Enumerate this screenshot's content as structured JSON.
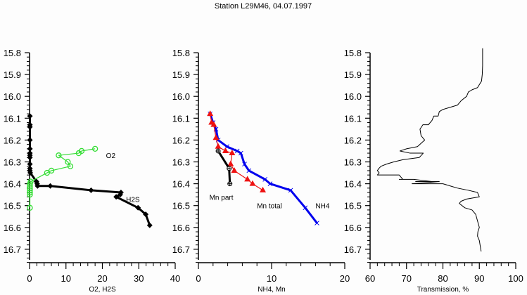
{
  "chart_data": {
    "type": "line",
    "title": "Station L29M46, 04.07.1997",
    "shared_y": {
      "label": "",
      "ylim": [
        15.8,
        16.76
      ],
      "inverted": true,
      "ticks": [
        15.8,
        15.9,
        16.0,
        16.1,
        16.2,
        16.3,
        16.4,
        16.5,
        16.6,
        16.7
      ],
      "tick_labels": [
        "15.8",
        "15.9",
        "16.0",
        "16.1",
        "16.2",
        "16.3",
        "16.4",
        "16.5",
        "16.6",
        "16.7"
      ]
    },
    "panels": [
      {
        "id": "o2-h2s",
        "xlabel": "O2, H2S",
        "xlim": [
          0,
          40
        ],
        "xticks": [
          0,
          10,
          20,
          30,
          40
        ],
        "xtick_labels": [
          "0",
          "10",
          "20",
          "30",
          "40"
        ],
        "series": [
          {
            "name": "H2S",
            "label": "H2S",
            "color": "#000000",
            "marker": "diamond",
            "points": [
              [
                0.1,
                16.09
              ],
              [
                0.1,
                16.13
              ],
              [
                0.1,
                16.14
              ],
              [
                0.1,
                16.2
              ],
              [
                0.1,
                16.24
              ],
              [
                0.1,
                16.26
              ],
              [
                0.1,
                16.27
              ],
              [
                0.1,
                16.28
              ],
              [
                0.1,
                16.31
              ],
              [
                0.1,
                16.33
              ],
              [
                0.1,
                16.34
              ],
              [
                0.2,
                16.35
              ],
              [
                1.9,
                16.39
              ],
              [
                2.1,
                16.4
              ],
              [
                2.2,
                16.41
              ],
              [
                5.7,
                16.41
              ],
              [
                16.9,
                16.43
              ],
              [
                25.1,
                16.44
              ],
              [
                24.9,
                16.45
              ],
              [
                23.8,
                16.46
              ],
              [
                29.8,
                16.51
              ],
              [
                31.9,
                16.54
              ],
              [
                33.0,
                16.59
              ]
            ],
            "label_at": [
              26.5,
              16.47
            ]
          },
          {
            "name": "O2",
            "label": "O2",
            "color": "#33dd33",
            "marker": "circle",
            "points": [
              [
                18.0,
                16.24
              ],
              [
                14.3,
                16.25
              ],
              [
                13.5,
                16.26
              ],
              [
                8.0,
                16.27
              ],
              [
                10.5,
                16.3
              ],
              [
                11.2,
                16.32
              ],
              [
                6.0,
                16.34
              ],
              [
                4.8,
                16.35
              ],
              [
                0.3,
                16.39
              ],
              [
                0.1,
                16.4
              ],
              [
                0.1,
                16.41
              ],
              [
                0.1,
                16.42
              ],
              [
                0.1,
                16.43
              ],
              [
                0.1,
                16.44
              ],
              [
                0.1,
                16.45
              ],
              [
                0.1,
                16.51
              ]
            ],
            "label_at": [
              21.0,
              16.27
            ]
          }
        ]
      },
      {
        "id": "nh4-mn",
        "xlabel": "NH4, Mn",
        "xlim": [
          0,
          20
        ],
        "xticks": [
          0,
          10,
          20
        ],
        "xtick_labels": [
          "0",
          "10",
          "20"
        ],
        "minor_xticks": 2,
        "series": [
          {
            "name": "NH4",
            "label": "NH4",
            "color": "#0000ee",
            "marker": "x",
            "points": [
              [
                1.6,
                16.08
              ],
              [
                2.0,
                16.12
              ],
              [
                2.4,
                16.15
              ],
              [
                2.7,
                16.2
              ],
              [
                3.9,
                16.23
              ],
              [
                5.3,
                16.25
              ],
              [
                5.8,
                16.26
              ],
              [
                6.3,
                16.31
              ],
              [
                6.9,
                16.34
              ],
              [
                9.1,
                16.38
              ],
              [
                9.8,
                16.4
              ],
              [
                12.6,
                16.43
              ],
              [
                14.6,
                16.51
              ],
              [
                16.2,
                16.58
              ]
            ],
            "label_at": [
              16.0,
              16.5
            ]
          },
          {
            "name": "Mn total",
            "label": "Mn total",
            "color": "#ee1111",
            "marker": "triangle",
            "points": [
              [
                1.6,
                16.08
              ],
              [
                1.8,
                16.12
              ],
              [
                2.1,
                16.13
              ],
              [
                2.4,
                16.19
              ],
              [
                2.7,
                16.23
              ],
              [
                3.7,
                16.25
              ],
              [
                4.6,
                16.26
              ],
              [
                4.4,
                16.31
              ],
              [
                4.9,
                16.34
              ],
              [
                6.7,
                16.38
              ],
              [
                7.4,
                16.4
              ],
              [
                8.8,
                16.43
              ]
            ],
            "label_at": [
              8.0,
              16.5
            ]
          },
          {
            "name": "Mn part",
            "label": "Mn part",
            "color": "#000000",
            "marker": "circle-cross",
            "points": [
              [
                2.7,
                16.25
              ],
              [
                4.2,
                16.33
              ],
              [
                4.3,
                16.4
              ]
            ],
            "label_at": [
              1.5,
              16.46
            ]
          }
        ]
      },
      {
        "id": "transmission",
        "xlabel": "Transmission, %",
        "xlim": [
          60,
          100
        ],
        "xticks": [
          60,
          70,
          80,
          90,
          100
        ],
        "xtick_labels": [
          "60",
          "70",
          "80",
          "90",
          "100"
        ],
        "series": [
          {
            "name": "Transmission",
            "color": "#000000",
            "marker": "none",
            "points": [
              [
                90.9,
                15.78
              ],
              [
                90.9,
                15.86
              ],
              [
                90.8,
                15.9
              ],
              [
                90.6,
                15.93
              ],
              [
                89.5,
                15.96
              ],
              [
                88.0,
                15.97
              ],
              [
                87.0,
                15.98
              ],
              [
                86.5,
                16.0
              ],
              [
                85.0,
                16.02
              ],
              [
                84.0,
                16.04
              ],
              [
                82.0,
                16.05
              ],
              [
                80.0,
                16.06
              ],
              [
                79.0,
                16.07
              ],
              [
                78.7,
                16.09
              ],
              [
                77.5,
                16.09
              ],
              [
                77.0,
                16.11
              ],
              [
                76.0,
                16.13
              ],
              [
                74.5,
                16.13
              ],
              [
                73.7,
                16.15
              ],
              [
                74.0,
                16.18
              ],
              [
                75.0,
                16.2
              ],
              [
                73.0,
                16.23
              ],
              [
                70.0,
                16.24
              ],
              [
                68.2,
                16.25
              ],
              [
                71.0,
                16.26
              ],
              [
                74.6,
                16.26
              ],
              [
                73.5,
                16.28
              ],
              [
                69.0,
                16.29
              ],
              [
                66.5,
                16.3
              ],
              [
                64.5,
                16.31
              ],
              [
                63.0,
                16.32
              ],
              [
                62.4,
                16.33
              ],
              [
                62.0,
                16.34
              ],
              [
                62.5,
                16.35
              ],
              [
                62.0,
                16.36
              ],
              [
                68.0,
                16.36
              ],
              [
                69.0,
                16.38
              ],
              [
                68.0,
                16.38
              ],
              [
                72.0,
                16.38
              ],
              [
                77.0,
                16.39
              ],
              [
                72.5,
                16.39
              ],
              [
                79.0,
                16.39
              ],
              [
                71.5,
                16.4
              ],
              [
                80.0,
                16.4
              ],
              [
                82.0,
                16.41
              ],
              [
                84.0,
                16.42
              ],
              [
                87.0,
                16.43
              ],
              [
                89.5,
                16.44
              ],
              [
                90.0,
                16.46
              ],
              [
                86.5,
                16.47
              ],
              [
                85.0,
                16.48
              ],
              [
                84.5,
                16.49
              ],
              [
                86.0,
                16.51
              ],
              [
                88.0,
                16.52
              ],
              [
                89.0,
                16.54
              ],
              [
                89.5,
                16.57
              ],
              [
                90.0,
                16.6
              ],
              [
                89.6,
                16.62
              ],
              [
                89.5,
                16.64
              ],
              [
                90.0,
                16.66
              ],
              [
                90.3,
                16.69
              ],
              [
                90.5,
                16.71
              ]
            ]
          }
        ]
      }
    ]
  }
}
